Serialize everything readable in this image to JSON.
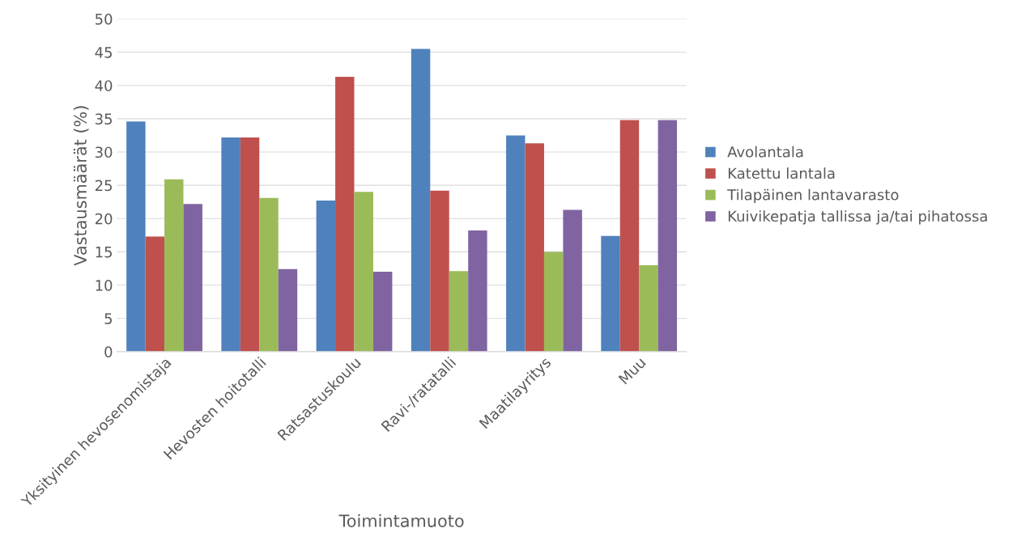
{
  "chart_data": {
    "type": "bar",
    "xlabel": "Toimintamuoto",
    "ylabel": "Vastausmäärät (%)",
    "categories": [
      "Yksityinen hevosenomistaja",
      "Hevosten hoitotalli",
      "Ratsastuskoulu",
      "Ravi-/ratatalli",
      "Maatilayritys",
      "Muu"
    ],
    "series": [
      {
        "name": "Avolantala",
        "color": "#4f81bd",
        "values": [
          34.6,
          32.2,
          22.7,
          45.5,
          32.5,
          17.4
        ]
      },
      {
        "name": "Katettu lantala",
        "color": "#c0504d",
        "values": [
          17.3,
          32.2,
          41.3,
          24.2,
          31.3,
          34.8
        ]
      },
      {
        "name": "Tilapäinen lantavarasto",
        "color": "#9bbb59",
        "values": [
          25.9,
          23.1,
          24.0,
          12.1,
          15.0,
          13.0
        ]
      },
      {
        "name": "Kuivikepatja tallissa ja/tai pihatossa",
        "color": "#8064a2",
        "values": [
          22.2,
          12.4,
          12.0,
          18.2,
          21.3,
          34.8
        ]
      }
    ],
    "ylim": [
      0,
      50
    ],
    "yticks": [
      0,
      5,
      10,
      15,
      20,
      25,
      30,
      35,
      40,
      45,
      50
    ],
    "grid": "y",
    "legend": "right"
  }
}
